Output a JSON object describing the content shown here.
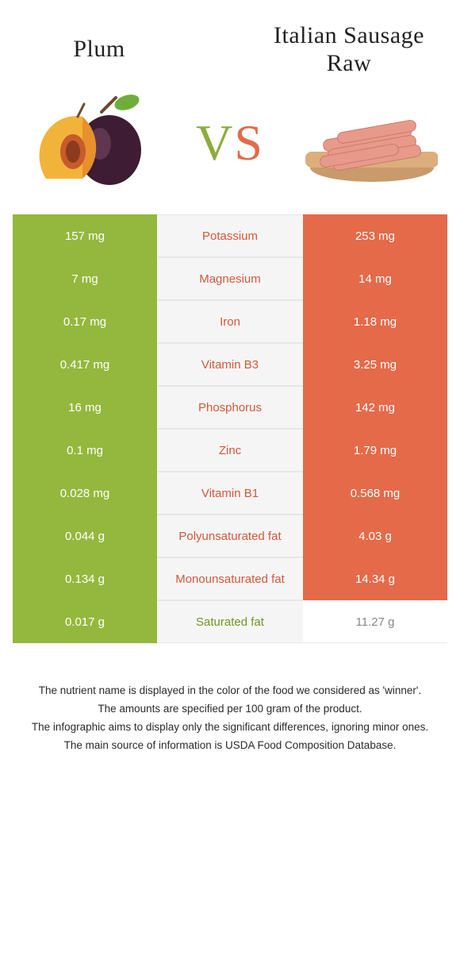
{
  "foods": {
    "left": {
      "name": "Plum",
      "color": "#94b83d",
      "text": "#6f9623"
    },
    "right": {
      "name": "Italian sausage raw",
      "color": "#e46a4a",
      "text": "#d6573a"
    }
  },
  "vs": "VS",
  "palette": {
    "green": "#94b83d",
    "orange": "#e46a4a",
    "mid_bg": "#f5f5f5",
    "page_bg": "#ffffff",
    "green_text": "#6f9623",
    "orange_text": "#d6573a",
    "grey_text": "#888888",
    "hair": "#e7e7e7"
  },
  "typography": {
    "title_font": "Georgia",
    "title_size_pt": 22,
    "vs_size_pt": 48,
    "body_size_pt": 11,
    "foot_size_pt": 10
  },
  "rows": [
    {
      "label": "Potassium",
      "left": "157 mg",
      "right": "253 mg",
      "winner": "right"
    },
    {
      "label": "Magnesium",
      "left": "7 mg",
      "right": "14 mg",
      "winner": "right"
    },
    {
      "label": "Iron",
      "left": "0.17 mg",
      "right": "1.18 mg",
      "winner": "right"
    },
    {
      "label": "Vitamin B3",
      "left": "0.417 mg",
      "right": "3.25 mg",
      "winner": "right"
    },
    {
      "label": "Phosphorus",
      "left": "16 mg",
      "right": "142 mg",
      "winner": "right"
    },
    {
      "label": "Zinc",
      "left": "0.1 mg",
      "right": "1.79 mg",
      "winner": "right"
    },
    {
      "label": "Vitamin B1",
      "left": "0.028 mg",
      "right": "0.568 mg",
      "winner": "right"
    },
    {
      "label": "Polyunsaturated fat",
      "left": "0.044 g",
      "right": "4.03 g",
      "winner": "right"
    },
    {
      "label": "Monounsaturated fat",
      "left": "0.134 g",
      "right": "14.34 g",
      "winner": "right"
    },
    {
      "label": "Saturated fat",
      "left": "0.017 g",
      "right": "11.27 g",
      "winner": "left"
    }
  ],
  "footnotes": [
    "The nutrient name is displayed in the color of the food we considered as 'winner'.",
    "The amounts are specified per 100 gram of the product.",
    "The infographic aims to display only the significant differences, ignoring minor ones.",
    "The main source of information is USDA Food Composition Database."
  ]
}
